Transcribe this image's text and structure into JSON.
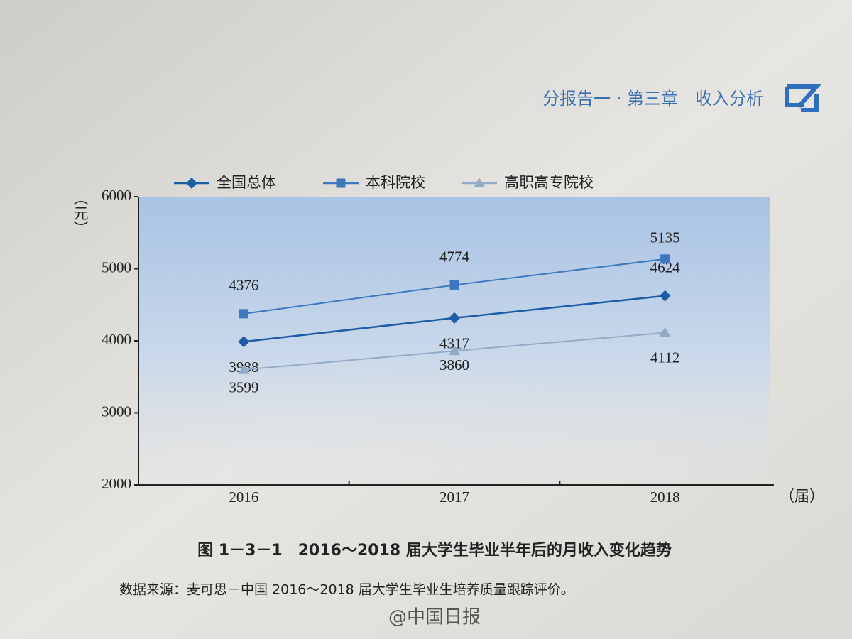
{
  "page": {
    "header": "分报告一 · 第三章　收入分析",
    "source": "数据来源：麦可思－中国 2016～2018 届大学生毕业生培养质量跟踪评价。",
    "watermark": "@中国日报"
  },
  "chart_data": {
    "type": "line",
    "title": "图 1－3－1　2016～2018 届大学生毕业半年后的月收入变化趋势",
    "y_label": "（元）",
    "x_label": "（届）",
    "categories": [
      "2016",
      "2017",
      "2018"
    ],
    "series": [
      {
        "name": "全国总体",
        "color": "#1f5ca6",
        "marker": "diamond",
        "values": [
          3988,
          4317,
          4624
        ]
      },
      {
        "name": "本科院校",
        "color": "#3d78bf",
        "marker": "square",
        "values": [
          4376,
          4774,
          5135
        ]
      },
      {
        "name": "高职高专院校",
        "color": "#93aac6",
        "marker": "triangle",
        "values": [
          3599,
          3860,
          4112
        ]
      }
    ],
    "ylim": [
      2000,
      6000
    ],
    "yticks": [
      2000,
      3000,
      4000,
      5000,
      6000
    ]
  }
}
